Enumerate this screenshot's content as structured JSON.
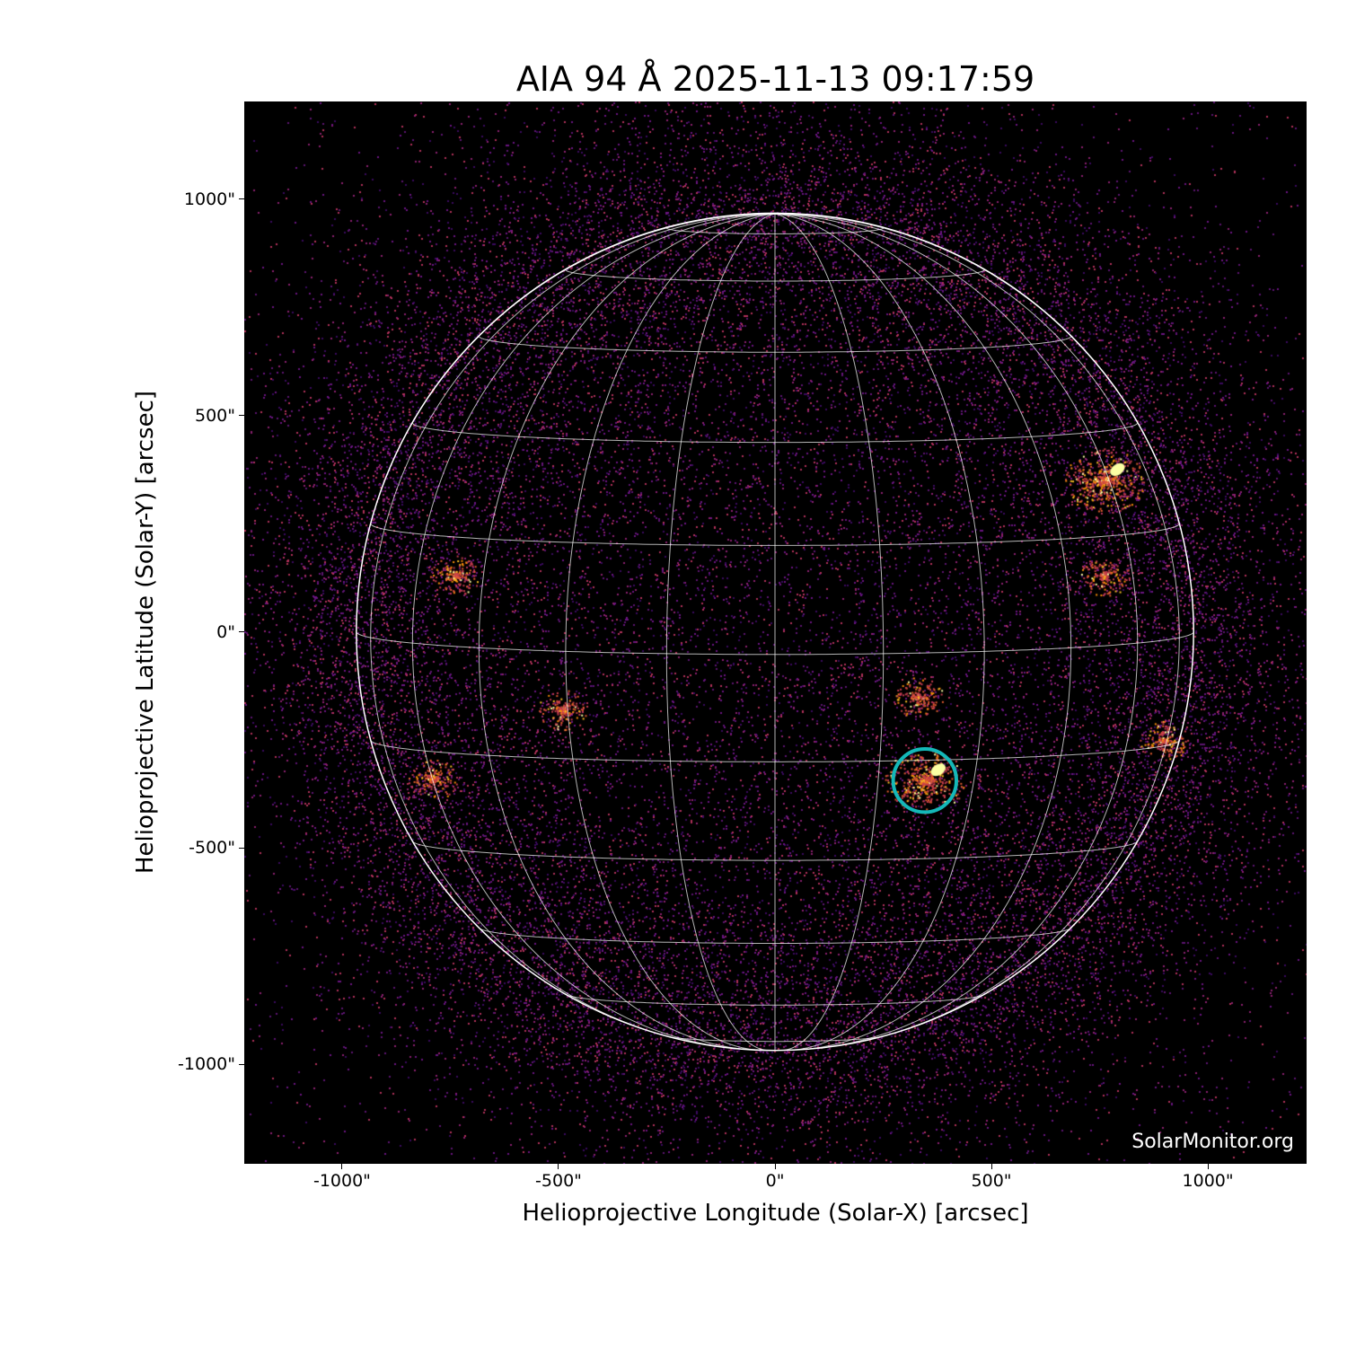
{
  "chart_data": {
    "type": "heatmap",
    "title": "AIA 94 Å 2025-11-13 09:17:59",
    "xlabel": "Helioprojective Longitude (Solar-X) [arcsec]",
    "ylabel": "Helioprojective Latitude (Solar-Y) [arcsec]",
    "xlim": [
      -1226,
      1228
    ],
    "ylim": [
      -1230,
      1226
    ],
    "xticks": [
      {
        "value": -1000,
        "label": "-1000\""
      },
      {
        "value": -500,
        "label": "-500\""
      },
      {
        "value": 0,
        "label": "0\""
      },
      {
        "value": 500,
        "label": "500\""
      },
      {
        "value": 1000,
        "label": "1000\""
      }
    ],
    "yticks": [
      {
        "value": 1000,
        "label": "1000\""
      },
      {
        "value": 500,
        "label": "500\""
      },
      {
        "value": 0,
        "label": "0\""
      },
      {
        "value": -500,
        "label": "-500\""
      },
      {
        "value": -1000,
        "label": "-1000\""
      }
    ],
    "solar_radius_arcsec": 967,
    "grid": {
      "type": "heliographic",
      "spacing_deg": 15,
      "color": "#ffffff"
    },
    "colormap": "inferno",
    "highlight_circle": {
      "center": [
        346,
        -344
      ],
      "radius_arcsec": 73,
      "color": "#14b8b8"
    },
    "active_regions": [
      [
        346,
        -344
      ],
      [
        760,
        350
      ],
      [
        760,
        130
      ],
      [
        -490,
        -180
      ],
      [
        -740,
        130
      ],
      [
        330,
        -150
      ],
      [
        900,
        -250
      ],
      [
        -790,
        -340
      ]
    ],
    "watermark": "SolarMonitor.org"
  }
}
